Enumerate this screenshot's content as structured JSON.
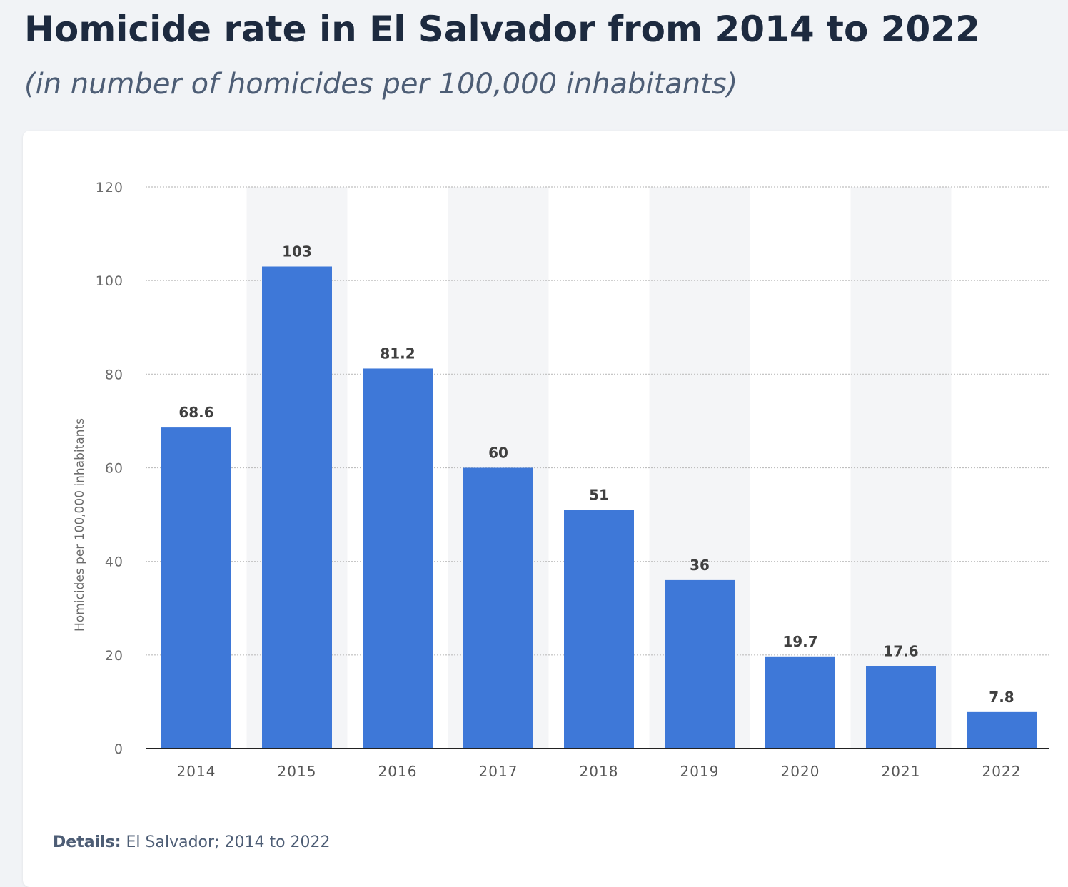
{
  "header": {
    "title": "Homicide rate in El Salvador from 2014 to 2022",
    "subtitle": "(in number of homicides per 100,000 inhabitants)"
  },
  "details": {
    "label": "Details:",
    "text": "El Salvador; 2014 to 2022"
  },
  "colors": {
    "bar": "#3e78d8",
    "band": "#f4f5f7",
    "grid": "#bfbfbf",
    "axis": "#222222",
    "tick_text": "#6b6b6b",
    "value_text": "#404040"
  },
  "chart_data": {
    "type": "bar",
    "title": "Homicide rate in El Salvador from 2014 to 2022",
    "xlabel": "",
    "ylabel": "Homicides per 100,000 inhabitants",
    "categories": [
      "2014",
      "2015",
      "2016",
      "2017",
      "2018",
      "2019",
      "2020",
      "2021",
      "2022"
    ],
    "values": [
      68.6,
      103,
      81.2,
      60,
      51,
      36,
      19.7,
      17.6,
      7.8
    ],
    "value_labels": [
      "68.6",
      "103",
      "81.2",
      "60",
      "51",
      "36",
      "19.7",
      "17.6",
      "7.8"
    ],
    "ylim": [
      0,
      120
    ],
    "yticks": [
      0,
      20,
      40,
      60,
      80,
      100,
      120
    ],
    "grid": true,
    "legend": "none"
  }
}
